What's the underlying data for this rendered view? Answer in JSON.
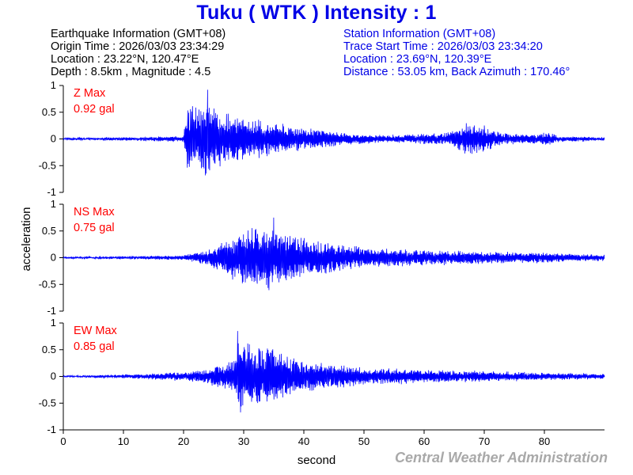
{
  "title": "Tuku ( WTK ) Intensity : 1",
  "earthquake_info": {
    "heading": "Earthquake Information (GMT+08)",
    "origin_time": "Origin Time : 2026/03/03 23:34:29",
    "location": "Location : 23.22°N, 120.47°E",
    "depth_magnitude": "Depth : 8.5km , Magnitude : 4.5"
  },
  "station_info": {
    "heading": "Station Information (GMT+08)",
    "trace_start": "Trace Start Time : 2026/03/03 23:34:20",
    "location": "Location : 23.69°N, 120.39°E",
    "distance_azimuth": "Distance : 53.05 km, Back Azimuth : 170.46°"
  },
  "footer": "Central Weather Administration",
  "colors": {
    "title": "#0000e6",
    "trace": "#0000ff",
    "peak_label": "#ff0000",
    "footer": "#a9a9a9"
  },
  "chart_data": {
    "type": "line",
    "xlabel": "second",
    "ylabel": "acceleration",
    "xlim": [
      0,
      90
    ],
    "xticks": [
      0,
      10,
      20,
      30,
      40,
      50,
      60,
      70,
      80
    ],
    "ylim": [
      -1,
      1
    ],
    "yticks": [
      1,
      0.5,
      0,
      -0.5,
      -1
    ],
    "ytick_labels": [
      "1",
      "0.5",
      "0",
      "-0.5",
      "-1"
    ],
    "grid": false,
    "series": [
      {
        "name": "Z Max",
        "peak_label": "0.92 gal",
        "peak": 0.92,
        "noise": 0.012,
        "envelope": [
          [
            0,
            0.02
          ],
          [
            12,
            0.03
          ],
          [
            20,
            0.05
          ],
          [
            20.5,
            0.58
          ],
          [
            24,
            0.72
          ],
          [
            27,
            0.5
          ],
          [
            32,
            0.38
          ],
          [
            40,
            0.22
          ],
          [
            48,
            0.1
          ],
          [
            55,
            0.07
          ],
          [
            64,
            0.12
          ],
          [
            67,
            0.3
          ],
          [
            70,
            0.28
          ],
          [
            73,
            0.12
          ],
          [
            79,
            0.08
          ],
          [
            80.5,
            0.14
          ],
          [
            82,
            0.06
          ],
          [
            89,
            0.03
          ]
        ]
      },
      {
        "name": "NS Max",
        "peak_label": "0.75 gal",
        "peak": 0.75,
        "noise": 0.01,
        "envelope": [
          [
            0,
            0.01
          ],
          [
            20,
            0.04
          ],
          [
            24,
            0.15
          ],
          [
            28,
            0.4
          ],
          [
            32,
            0.6
          ],
          [
            35,
            0.62
          ],
          [
            38,
            0.42
          ],
          [
            45,
            0.28
          ],
          [
            52,
            0.18
          ],
          [
            60,
            0.15
          ],
          [
            68,
            0.12
          ],
          [
            78,
            0.1
          ],
          [
            89,
            0.06
          ]
        ]
      },
      {
        "name": "EW Max",
        "peak_label": "0.85 gal",
        "peak": 0.85,
        "noise": 0.01,
        "envelope": [
          [
            0,
            0.01
          ],
          [
            12,
            0.04
          ],
          [
            20,
            0.08
          ],
          [
            23,
            0.12
          ],
          [
            28.5,
            0.3
          ],
          [
            29,
            0.72
          ],
          [
            31,
            0.62
          ],
          [
            34,
            0.55
          ],
          [
            38,
            0.38
          ],
          [
            42,
            0.28
          ],
          [
            50,
            0.17
          ],
          [
            60,
            0.13
          ],
          [
            70,
            0.1
          ],
          [
            80,
            0.07
          ],
          [
            89,
            0.05
          ]
        ]
      }
    ]
  }
}
